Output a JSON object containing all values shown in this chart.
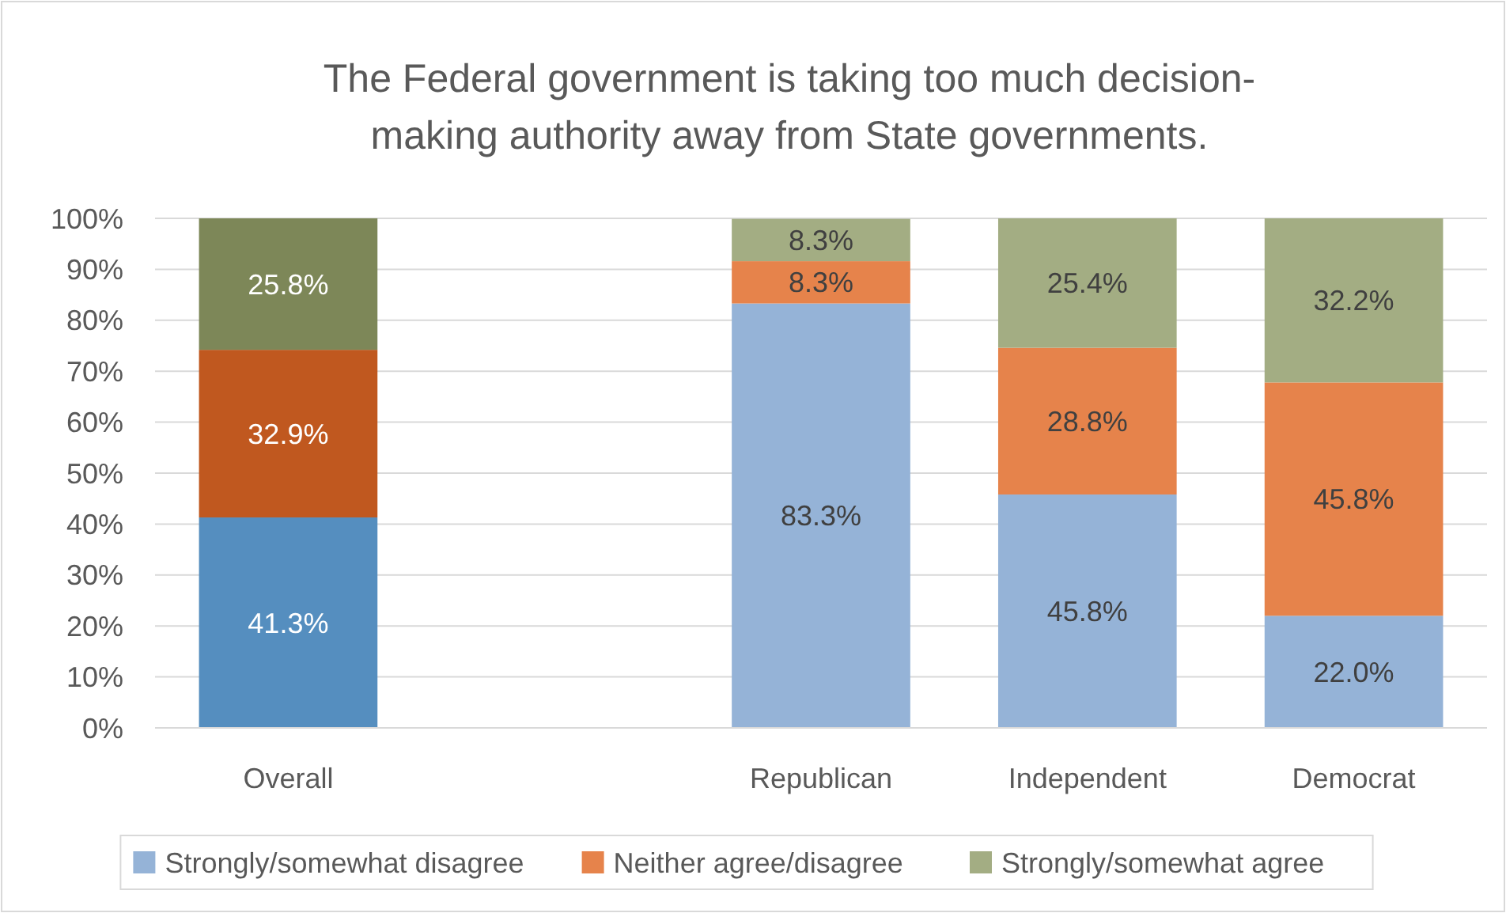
{
  "chart_data": {
    "type": "bar",
    "stacked": true,
    "title": "The Federal government is taking too much decision-making authority away from State governments.",
    "categories": [
      "Overall",
      null,
      "Republican",
      "Independent",
      "Democrat"
    ],
    "series": [
      {
        "name": "Strongly/somewhat disagree",
        "color": "#95b3d7",
        "colors": [
          "#558ebf",
          null,
          "#95b3d7",
          "#95b3d7",
          "#95b3d7"
        ],
        "values": [
          41.3,
          null,
          83.3,
          45.8,
          22.0
        ],
        "value_labels": [
          "41.3%",
          null,
          "83.3%",
          "45.8%",
          "22.0%"
        ]
      },
      {
        "name": "Neither agree/disagree",
        "color": "#e6834b",
        "colors": [
          "#c0581f",
          null,
          "#e6834b",
          "#e6834b",
          "#e6834b"
        ],
        "values": [
          32.9,
          null,
          8.3,
          28.8,
          45.8
        ],
        "value_labels": [
          "32.9%",
          null,
          "8.3%",
          "28.8%",
          "45.8%"
        ]
      },
      {
        "name": "Strongly/somewhat agree",
        "color": "#a3ad83",
        "colors": [
          "#7d8758",
          null,
          "#a3ad83",
          "#a3ad83",
          "#a3ad83"
        ],
        "values": [
          25.8,
          null,
          8.3,
          25.4,
          32.2
        ],
        "value_labels": [
          "25.8%",
          null,
          "8.3%",
          "25.4%",
          "32.2%"
        ]
      }
    ],
    "ylim": [
      0,
      100
    ],
    "yticks": [
      {
        "value": 0,
        "label": "0%"
      },
      {
        "value": 10,
        "label": "10%"
      },
      {
        "value": 20,
        "label": "20%"
      },
      {
        "value": 30,
        "label": "30%"
      },
      {
        "value": 40,
        "label": "40%"
      },
      {
        "value": 50,
        "label": "50%"
      },
      {
        "value": 60,
        "label": "60%"
      },
      {
        "value": 70,
        "label": "70%"
      },
      {
        "value": 80,
        "label": "80%"
      },
      {
        "value": 90,
        "label": "90%"
      },
      {
        "value": 100,
        "label": "100%"
      }
    ],
    "grid": "y",
    "legend": "bottom"
  }
}
